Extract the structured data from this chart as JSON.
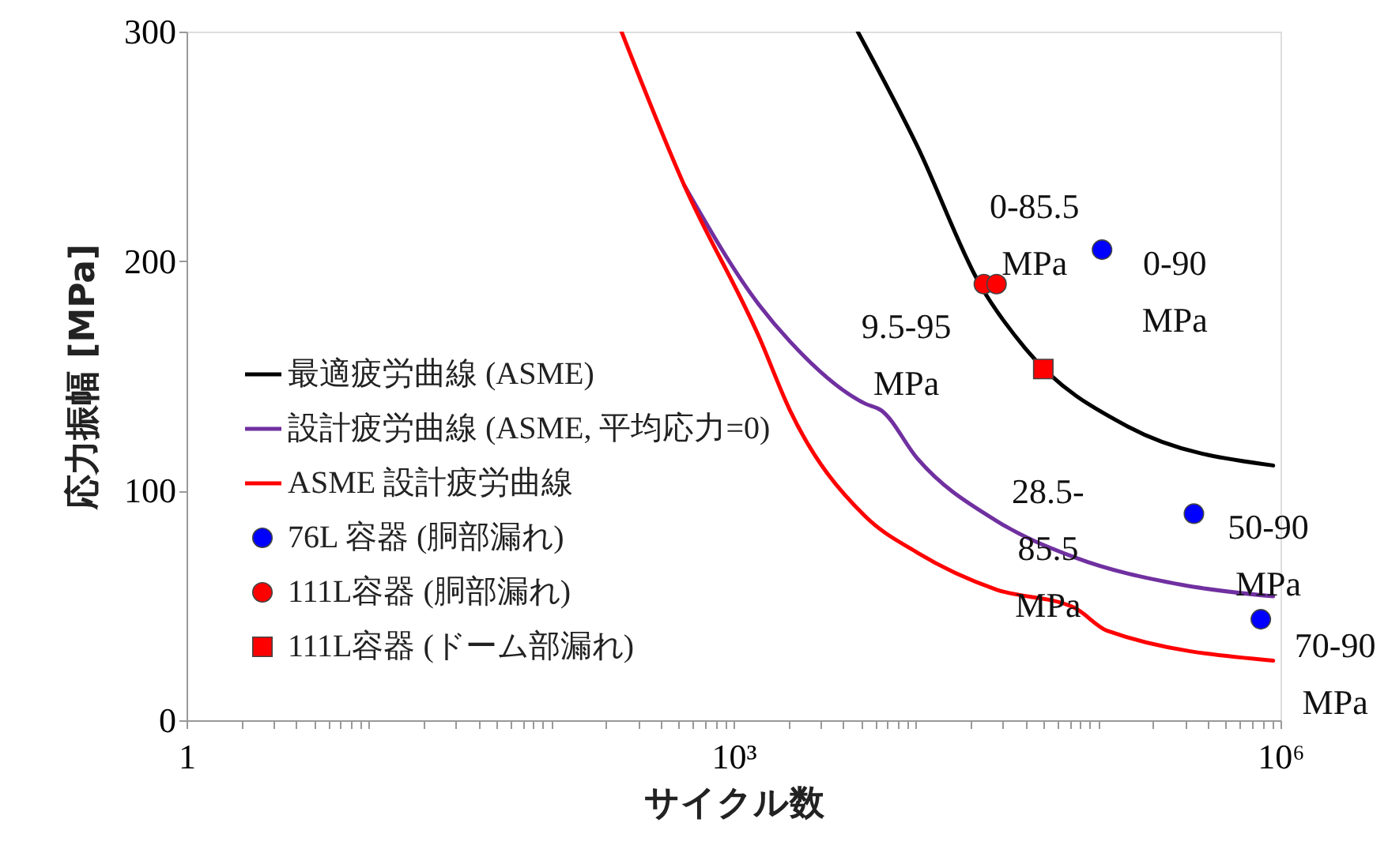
{
  "chart_data": {
    "type": "line",
    "xlabel": "サイクル数",
    "ylabel": "応力振幅 [MPa]",
    "log": "x",
    "xlim": [
      1,
      1000000
    ],
    "ylim": [
      0,
      300
    ],
    "xticks": [
      1,
      {
        "value": 2,
        "label": null
      },
      {
        "value": 3,
        "label": null
      },
      {
        "value": 4,
        "label": null
      },
      {
        "value": 5,
        "label": null
      },
      {
        "value": 6,
        "label": null
      },
      {
        "value": 7,
        "label": null
      },
      {
        "value": 8,
        "label": null
      },
      {
        "value": 9,
        "label": null
      },
      {
        "value": 10,
        "label": null
      },
      {
        "value": 20,
        "label": null
      },
      {
        "value": 30,
        "label": null
      },
      {
        "value": 40,
        "label": null
      },
      {
        "value": 50,
        "label": null
      },
      {
        "value": 60,
        "label": null
      },
      {
        "value": 70,
        "label": null
      },
      {
        "value": 80,
        "label": null
      },
      {
        "value": 90,
        "label": null
      },
      {
        "value": 100,
        "label": null
      },
      {
        "value": 200,
        "label": null
      },
      {
        "value": 300,
        "label": null
      },
      {
        "value": 400,
        "label": null
      },
      {
        "value": 500,
        "label": null
      },
      {
        "value": 600,
        "label": null
      },
      {
        "value": 700,
        "label": null
      },
      {
        "value": 800,
        "label": null
      },
      {
        "value": 900,
        "label": null
      },
      {
        "value": 1000,
        "label": "10³"
      },
      {
        "value": 2000,
        "label": null
      },
      {
        "value": 3000,
        "label": null
      },
      {
        "value": 4000,
        "label": null
      },
      {
        "value": 5000,
        "label": null
      },
      {
        "value": 6000,
        "label": null
      },
      {
        "value": 7000,
        "label": null
      },
      {
        "value": 8000,
        "label": null
      },
      {
        "value": 9000,
        "label": null
      },
      {
        "value": 10000,
        "label": null
      },
      {
        "value": 20000,
        "label": null
      },
      {
        "value": 30000,
        "label": null
      },
      {
        "value": 40000,
        "label": null
      },
      {
        "value": 50000,
        "label": null
      },
      {
        "value": 60000,
        "label": null
      },
      {
        "value": 70000,
        "label": null
      },
      {
        "value": 80000,
        "label": null
      },
      {
        "value": 90000,
        "label": null
      },
      {
        "value": 100000,
        "label": null
      },
      {
        "value": 200000,
        "label": null
      },
      {
        "value": 300000,
        "label": null
      },
      {
        "value": 400000,
        "label": null
      },
      {
        "value": 500000,
        "label": null
      },
      {
        "value": 600000,
        "label": null
      },
      {
        "value": 700000,
        "label": null
      },
      {
        "value": 800000,
        "label": null
      },
      {
        "value": 900000,
        "label": null
      },
      {
        "value": 1000000,
        "label": "10⁶"
      }
    ],
    "yticks": [
      0,
      100,
      200,
      300
    ],
    "grid": false,
    "legend": "left",
    "line_style": "solid",
    "series": [
      {
        "name": "最適疲労曲線 (ASME)",
        "color": "#000000",
        "x": [
          4800,
          10200,
          22400,
          39800,
          145000,
          912000
        ],
        "values": [
          300,
          250,
          190,
          162,
          128,
          111
        ]
      },
      {
        "name": "設計疲労曲線 (ASME, 平均応力=0)",
        "color": "#7030a0",
        "x": [
          537,
          1380,
          2040,
          5250,
          6460,
          10200,
          27500,
          74100,
          288000,
          912000
        ],
        "values": [
          233,
          181,
          165,
          138,
          135,
          114,
          87,
          71,
          59,
          54
        ]
      },
      {
        "name": "ASME 設計疲労曲線",
        "color": "#ff0000",
        "x": [
          243,
          537,
          1380,
          2040,
          5250,
          10200,
          27500,
          74100,
          112000,
          912000
        ],
        "values": [
          300,
          233,
          167,
          135,
          89,
          73,
          57,
          49,
          39,
          26
        ]
      },
      {
        "type": "scatter",
        "marker": "circle",
        "name": "76L 容器 (胴部漏れ)",
        "color": "#0000ff",
        "x": [
          105000,
          335000,
          780000
        ],
        "values": [
          205,
          90,
          44
        ]
      },
      {
        "type": "scatter",
        "marker": "circle",
        "name": "111L容器 (胴部漏れ)",
        "color": "#ff0000",
        "x": [
          23600,
          27700
        ],
        "values": [
          190,
          190
        ]
      },
      {
        "type": "scatter",
        "marker": "square",
        "name": "111L容器 (ドーム部漏れ)",
        "color": "#ff0000",
        "x": [
          50000
        ],
        "values": [
          153
        ]
      }
    ],
    "annotations": [
      {
        "text": "0-85.5\nMPa",
        "x": 27700,
        "y": 190
      },
      {
        "text": "9.5-95\nMPa",
        "x": 23600,
        "y": 190
      },
      {
        "text": "0-90\nMPa",
        "x": 105000,
        "y": 205
      },
      {
        "text": "28.5-\n85.5\nMPa",
        "x": 50000,
        "y": 153
      },
      {
        "text": "50-90\nMPa",
        "x": 335000,
        "y": 90
      },
      {
        "text": "70-90\nMPa",
        "x": 780000,
        "y": 44
      }
    ]
  }
}
